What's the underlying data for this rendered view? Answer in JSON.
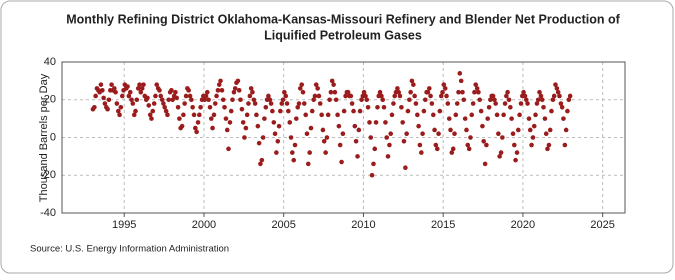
{
  "chart_data": {
    "type": "scatter",
    "title": [
      "Monthly Refining District Oklahoma-Kansas-Missouri Refinery and Blender Net Production of",
      "Liquified Petroleum Gases"
    ],
    "y_label": "Thousand Barrels per Day",
    "source": "Source: U.S. Energy Information Administration",
    "xlim": [
      1991.1,
      2026.4
    ],
    "xticks": [
      1995,
      2000,
      2005,
      2010,
      2015,
      2020,
      2025
    ],
    "ylim": [
      -40,
      40
    ],
    "yticks": [
      -40,
      -20,
      0,
      20,
      40
    ],
    "grid": true,
    "series": [
      {
        "color": "#9b1c1c",
        "x": [
          1993.04,
          1993.13,
          1993.21,
          1993.29,
          1993.38,
          1993.46,
          1993.54,
          1993.63,
          1993.71,
          1993.79,
          1993.88,
          1993.96,
          1994.04,
          1994.13,
          1994.21,
          1994.29,
          1994.38,
          1994.46,
          1994.54,
          1994.63,
          1994.71,
          1994.79,
          1994.88,
          1994.96,
          1995.04,
          1995.13,
          1995.21,
          1995.29,
          1995.38,
          1995.46,
          1995.54,
          1995.63,
          1995.71,
          1995.79,
          1995.88,
          1995.96,
          1996.04,
          1996.13,
          1996.21,
          1996.29,
          1996.38,
          1996.46,
          1996.54,
          1996.63,
          1996.71,
          1996.79,
          1996.88,
          1996.96,
          1997.04,
          1997.13,
          1997.21,
          1997.29,
          1997.38,
          1997.46,
          1997.54,
          1997.63,
          1997.71,
          1997.79,
          1997.88,
          1997.96,
          1998.04,
          1998.13,
          1998.21,
          1998.29,
          1998.38,
          1998.46,
          1998.54,
          1998.63,
          1998.71,
          1998.79,
          1998.88,
          1998.96,
          1999.04,
          1999.13,
          1999.21,
          1999.29,
          1999.38,
          1999.46,
          1999.54,
          1999.63,
          1999.71,
          1999.79,
          1999.88,
          1999.96,
          2000.04,
          2000.13,
          2000.21,
          2000.29,
          2000.38,
          2000.46,
          2000.54,
          2000.63,
          2000.71,
          2000.79,
          2000.88,
          2000.96,
          2001.04,
          2001.13,
          2001.21,
          2001.29,
          2001.38,
          2001.46,
          2001.54,
          2001.63,
          2001.71,
          2001.79,
          2001.88,
          2001.96,
          2002.04,
          2002.13,
          2002.21,
          2002.29,
          2002.38,
          2002.46,
          2002.54,
          2002.63,
          2002.71,
          2002.79,
          2002.88,
          2002.96,
          2003.04,
          2003.13,
          2003.21,
          2003.29,
          2003.38,
          2003.46,
          2003.54,
          2003.63,
          2003.71,
          2003.79,
          2003.88,
          2003.96,
          2004.04,
          2004.13,
          2004.21,
          2004.29,
          2004.38,
          2004.46,
          2004.54,
          2004.63,
          2004.71,
          2004.79,
          2004.88,
          2004.96,
          2005.04,
          2005.13,
          2005.21,
          2005.29,
          2005.38,
          2005.46,
          2005.54,
          2005.63,
          2005.71,
          2005.79,
          2005.88,
          2005.96,
          2006.04,
          2006.13,
          2006.21,
          2006.29,
          2006.38,
          2006.46,
          2006.54,
          2006.63,
          2006.71,
          2006.79,
          2006.88,
          2006.96,
          2007.04,
          2007.13,
          2007.21,
          2007.29,
          2007.38,
          2007.46,
          2007.54,
          2007.63,
          2007.71,
          2007.79,
          2007.88,
          2007.96,
          2008.04,
          2008.13,
          2008.21,
          2008.29,
          2008.38,
          2008.46,
          2008.54,
          2008.63,
          2008.71,
          2008.79,
          2008.88,
          2008.96,
          2009.04,
          2009.13,
          2009.21,
          2009.29,
          2009.38,
          2009.46,
          2009.54,
          2009.63,
          2009.71,
          2009.79,
          2009.88,
          2009.96,
          2010.04,
          2010.13,
          2010.21,
          2010.29,
          2010.38,
          2010.46,
          2010.54,
          2010.63,
          2010.71,
          2010.79,
          2010.88,
          2010.96,
          2011.04,
          2011.13,
          2011.21,
          2011.29,
          2011.38,
          2011.46,
          2011.54,
          2011.63,
          2011.71,
          2011.79,
          2011.88,
          2011.96,
          2012.04,
          2012.13,
          2012.21,
          2012.29,
          2012.38,
          2012.46,
          2012.54,
          2012.63,
          2012.71,
          2012.79,
          2012.88,
          2012.96,
          2013.04,
          2013.13,
          2013.21,
          2013.29,
          2013.38,
          2013.46,
          2013.54,
          2013.63,
          2013.71,
          2013.79,
          2013.88,
          2013.96,
          2014.04,
          2014.13,
          2014.21,
          2014.29,
          2014.38,
          2014.46,
          2014.54,
          2014.63,
          2014.71,
          2014.79,
          2014.88,
          2014.96,
          2015.04,
          2015.13,
          2015.21,
          2015.29,
          2015.38,
          2015.46,
          2015.54,
          2015.63,
          2015.71,
          2015.79,
          2015.88,
          2015.96,
          2016.04,
          2016.13,
          2016.21,
          2016.29,
          2016.38,
          2016.46,
          2016.54,
          2016.63,
          2016.71,
          2016.79,
          2016.88,
          2016.96,
          2017.04,
          2017.13,
          2017.21,
          2017.29,
          2017.38,
          2017.46,
          2017.54,
          2017.63,
          2017.71,
          2017.79,
          2017.88,
          2017.96,
          2018.04,
          2018.13,
          2018.21,
          2018.29,
          2018.38,
          2018.46,
          2018.54,
          2018.63,
          2018.71,
          2018.79,
          2018.88,
          2018.96,
          2019.04,
          2019.13,
          2019.21,
          2019.29,
          2019.38,
          2019.46,
          2019.54,
          2019.63,
          2019.71,
          2019.79,
          2019.88,
          2019.96,
          2020.04,
          2020.13,
          2020.21,
          2020.29,
          2020.38,
          2020.46,
          2020.54,
          2020.63,
          2020.71,
          2020.79,
          2020.88,
          2020.96,
          2021.04,
          2021.13,
          2021.21,
          2021.29,
          2021.38,
          2021.46,
          2021.54,
          2021.63,
          2021.71,
          2021.79,
          2021.88,
          2021.96,
          2022.04,
          2022.13,
          2022.21,
          2022.29,
          2022.38,
          2022.46,
          2022.54,
          2022.63,
          2022.71,
          2022.79,
          2022.88,
          2022.96
        ],
        "values": [
          15,
          16,
          22,
          26,
          25,
          24,
          28,
          25,
          21,
          18,
          16,
          15,
          20,
          25,
          28,
          25,
          26,
          24,
          18,
          14,
          12,
          16,
          22,
          25,
          28,
          26,
          27,
          22,
          24,
          20,
          18,
          12,
          14,
          20,
          26,
          28,
          24,
          26,
          28,
          22,
          20,
          21,
          17,
          12,
          10,
          14,
          18,
          22,
          28,
          26,
          25,
          22,
          20,
          18,
          16,
          14,
          12,
          20,
          24,
          25,
          20,
          22,
          24,
          21,
          16,
          10,
          5,
          6,
          12,
          18,
          22,
          26,
          25,
          22,
          20,
          16,
          12,
          5,
          3,
          8,
          12,
          16,
          20,
          22,
          20,
          22,
          24,
          20,
          16,
          10,
          5,
          12,
          18,
          22,
          25,
          28,
          30,
          25,
          20,
          16,
          10,
          4,
          -6,
          8,
          14,
          20,
          24,
          26,
          29,
          30,
          25,
          20,
          15,
          8,
          0,
          5,
          12,
          18,
          22,
          26,
          24,
          20,
          18,
          12,
          6,
          -3,
          -14,
          -12,
          0,
          10,
          16,
          20,
          22,
          20,
          18,
          14,
          8,
          2,
          -8,
          -2,
          6,
          14,
          18,
          20,
          24,
          22,
          18,
          14,
          8,
          0,
          -8,
          -12,
          -4,
          10,
          16,
          18,
          26,
          28,
          24,
          18,
          12,
          2,
          -14,
          -8,
          5,
          14,
          20,
          22,
          28,
          26,
          22,
          18,
          12,
          4,
          -2,
          -8,
          0,
          12,
          20,
          24,
          30,
          28,
          24,
          20,
          12,
          6,
          -4,
          -13,
          2,
          14,
          22,
          24,
          24,
          22,
          22,
          18,
          14,
          6,
          -2,
          -10,
          4,
          14,
          20,
          22,
          24,
          22,
          20,
          16,
          8,
          0,
          -20,
          -14,
          -6,
          8,
          16,
          22,
          24,
          22,
          20,
          16,
          8,
          0,
          -10,
          -4,
          2,
          12,
          18,
          22,
          24,
          26,
          24,
          22,
          16,
          8,
          -2,
          -16,
          2,
          14,
          20,
          24,
          30,
          28,
          22,
          18,
          12,
          6,
          -4,
          -8,
          2,
          14,
          20,
          24,
          24,
          26,
          22,
          18,
          12,
          4,
          -4,
          -6,
          2,
          14,
          22,
          24,
          28,
          26,
          22,
          18,
          10,
          4,
          -8,
          -6,
          2,
          12,
          18,
          24,
          34,
          30,
          24,
          20,
          10,
          4,
          -4,
          -6,
          0,
          12,
          18,
          24,
          28,
          26,
          24,
          20,
          14,
          6,
          -2,
          -14,
          -4,
          10,
          16,
          20,
          22,
          22,
          20,
          18,
          12,
          2,
          -10,
          -8,
          0,
          12,
          18,
          22,
          24,
          20,
          16,
          10,
          2,
          -4,
          -12,
          -8,
          4,
          12,
          18,
          22,
          24,
          22,
          20,
          18,
          10,
          4,
          -4,
          0,
          6,
          12,
          18,
          20,
          24,
          22,
          20,
          16,
          10,
          2,
          -6,
          -4,
          4,
          14,
          20,
          22,
          28,
          26,
          24,
          22,
          18,
          16,
          10,
          -4,
          4,
          14,
          20,
          22
        ]
      }
    ]
  }
}
